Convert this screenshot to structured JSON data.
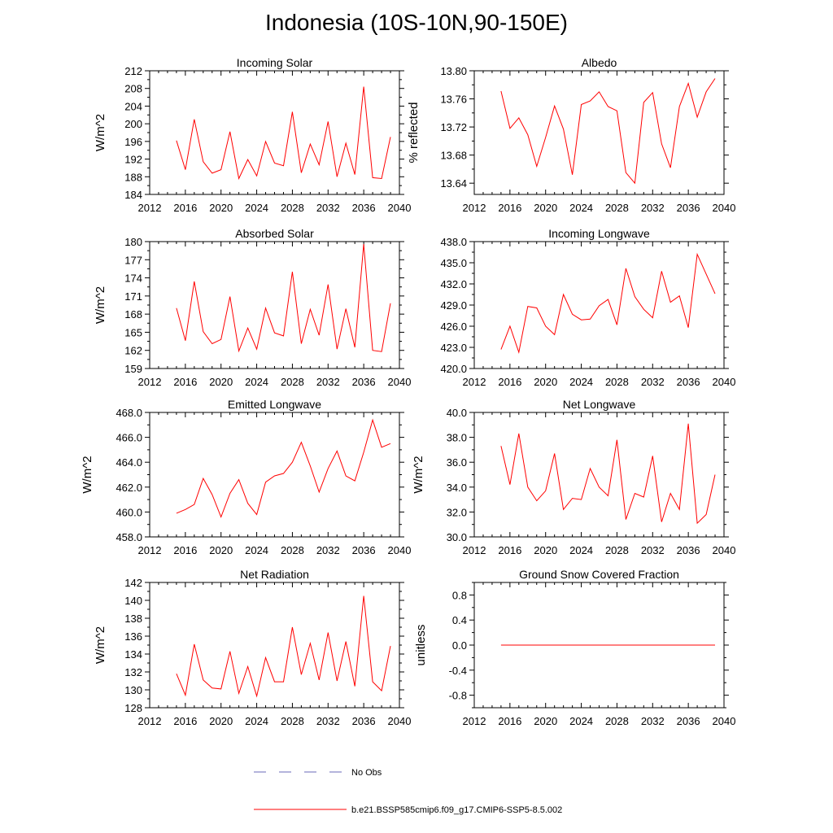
{
  "figure": {
    "title": "Indonesia (10S-10N,90-150E)"
  },
  "legend": {
    "obs_label": "No Obs",
    "obs_color": "#6a6ab8",
    "model_label": "b.e21.BSSP585cmip6.f09_g17.CMIP6-SSP5-8.5.002",
    "model_color": "#ff0000"
  },
  "chart_data": [
    {
      "type": "line",
      "title": "Incoming Solar",
      "ylabel": "W/m^2",
      "xlim": [
        2012,
        2040
      ],
      "xticks": [
        2012,
        2016,
        2020,
        2024,
        2028,
        2032,
        2036,
        2040
      ],
      "xtick_labels": [
        "2012",
        "2016",
        "2020",
        "2024",
        "2028",
        "2032",
        "2036",
        "2040"
      ],
      "ylim": [
        184,
        212
      ],
      "yticks": [
        184,
        188,
        192,
        196,
        200,
        204,
        208,
        212
      ],
      "ytick_labels": [
        "184",
        "188",
        "192",
        "196",
        "200",
        "204",
        "208",
        "212"
      ],
      "x": [
        2015,
        2016,
        2017,
        2018,
        2019,
        2020,
        2021,
        2022,
        2023,
        2024,
        2025,
        2026,
        2027,
        2028,
        2029,
        2030,
        2031,
        2032,
        2033,
        2034,
        2035,
        2036,
        2037,
        2038,
        2039
      ],
      "values": [
        196.2,
        189.6,
        201.0,
        191.4,
        188.8,
        189.6,
        198.2,
        187.6,
        191.9,
        188.2,
        196.0,
        191.1,
        190.5,
        202.7,
        188.9,
        195.4,
        190.7,
        200.5,
        188.0,
        195.6,
        188.5,
        208.4,
        187.8,
        187.6,
        197.0
      ],
      "color": "#ff0000"
    },
    {
      "type": "line",
      "title": "Albedo",
      "ylabel": "% reflected",
      "xlim": [
        2012,
        2040
      ],
      "xticks": [
        2012,
        2016,
        2020,
        2024,
        2028,
        2032,
        2036,
        2040
      ],
      "xtick_labels": [
        "2012",
        "2016",
        "2020",
        "2024",
        "2028",
        "2032",
        "2036",
        "2040"
      ],
      "ylim": [
        13.624,
        13.8
      ],
      "yticks": [
        13.64,
        13.68,
        13.72,
        13.76,
        13.8
      ],
      "ytick_labels": [
        "13.64",
        "13.68",
        "13.72",
        "13.76",
        "13.80"
      ],
      "x": [
        2015,
        2016,
        2017,
        2018,
        2019,
        2020,
        2021,
        2022,
        2023,
        2024,
        2025,
        2026,
        2027,
        2028,
        2029,
        2030,
        2031,
        2032,
        2033,
        2034,
        2035,
        2036,
        2037,
        2038,
        2039
      ],
      "values": [
        13.771,
        13.718,
        13.733,
        13.709,
        13.664,
        13.705,
        13.75,
        13.717,
        13.652,
        13.752,
        13.757,
        13.77,
        13.749,
        13.743,
        13.655,
        13.64,
        13.755,
        13.769,
        13.696,
        13.662,
        13.749,
        13.782,
        13.734,
        13.77,
        13.789
      ],
      "color": "#ff0000"
    },
    {
      "type": "line",
      "title": "Absorbed Solar",
      "ylabel": "W/m^2",
      "xlim": [
        2012,
        2040
      ],
      "xticks": [
        2012,
        2016,
        2020,
        2024,
        2028,
        2032,
        2036,
        2040
      ],
      "xtick_labels": [
        "2012",
        "2016",
        "2020",
        "2024",
        "2028",
        "2032",
        "2036",
        "2040"
      ],
      "ylim": [
        159,
        180
      ],
      "yticks": [
        159,
        162,
        165,
        168,
        171,
        174,
        177,
        180
      ],
      "ytick_labels": [
        "159",
        "162",
        "165",
        "168",
        "171",
        "174",
        "177",
        "180"
      ],
      "x": [
        2015,
        2016,
        2017,
        2018,
        2019,
        2020,
        2021,
        2022,
        2023,
        2024,
        2025,
        2026,
        2027,
        2028,
        2029,
        2030,
        2031,
        2032,
        2033,
        2034,
        2035,
        2036,
        2037,
        2038,
        2039
      ],
      "values": [
        169.0,
        163.6,
        173.4,
        165.1,
        163.1,
        163.8,
        170.9,
        161.9,
        165.7,
        162.2,
        169.0,
        164.9,
        164.4,
        175.0,
        163.1,
        168.8,
        164.5,
        172.9,
        162.2,
        168.9,
        162.5,
        179.6,
        162.0,
        161.8,
        169.8
      ],
      "color": "#ff0000"
    },
    {
      "type": "line",
      "title": "Incoming Longwave",
      "ylabel": "",
      "xlim": [
        2012,
        2040
      ],
      "xticks": [
        2012,
        2016,
        2020,
        2024,
        2028,
        2032,
        2036,
        2040
      ],
      "xtick_labels": [
        "2012",
        "2016",
        "2020",
        "2024",
        "2028",
        "2032",
        "2036",
        "2040"
      ],
      "ylim": [
        420,
        438
      ],
      "yticks": [
        420,
        423,
        426,
        429,
        432,
        435,
        438
      ],
      "ytick_labels": [
        "420.0",
        "423.0",
        "426.0",
        "429.0",
        "432.0",
        "435.0",
        "438.0"
      ],
      "x": [
        2015,
        2016,
        2017,
        2018,
        2019,
        2020,
        2021,
        2022,
        2023,
        2024,
        2025,
        2026,
        2027,
        2028,
        2029,
        2030,
        2031,
        2032,
        2033,
        2034,
        2035,
        2036,
        2037,
        2038,
        2039
      ],
      "values": [
        422.7,
        426.0,
        422.3,
        428.8,
        428.6,
        426.0,
        424.8,
        430.5,
        427.7,
        426.9,
        427.0,
        428.9,
        429.8,
        426.2,
        434.2,
        430.2,
        428.4,
        427.2,
        433.8,
        429.4,
        430.3,
        425.8,
        436.2,
        433.4,
        430.6
      ],
      "color": "#ff0000"
    },
    {
      "type": "line",
      "title": "Emitted Longwave",
      "ylabel": "W/m^2",
      "xlim": [
        2012,
        2040
      ],
      "xticks": [
        2012,
        2016,
        2020,
        2024,
        2028,
        2032,
        2036,
        2040
      ],
      "xtick_labels": [
        "2012",
        "2016",
        "2020",
        "2024",
        "2028",
        "2032",
        "2036",
        "2040"
      ],
      "ylim": [
        458,
        468
      ],
      "yticks": [
        458,
        460,
        462,
        464,
        466,
        468
      ],
      "ytick_labels": [
        "458.0",
        "460.0",
        "462.0",
        "464.0",
        "466.0",
        "468.0"
      ],
      "x": [
        2015,
        2016,
        2017,
        2018,
        2019,
        2020,
        2021,
        2022,
        2023,
        2024,
        2025,
        2026,
        2027,
        2028,
        2029,
        2030,
        2031,
        2032,
        2033,
        2034,
        2035,
        2036,
        2037,
        2038,
        2039
      ],
      "values": [
        459.9,
        460.2,
        460.6,
        462.7,
        461.4,
        459.6,
        461.5,
        462.6,
        460.7,
        459.8,
        462.4,
        462.9,
        463.1,
        464.0,
        465.6,
        463.7,
        461.6,
        463.5,
        464.9,
        462.9,
        462.5,
        464.8,
        467.4,
        465.2,
        465.5
      ],
      "color": "#ff0000"
    },
    {
      "type": "line",
      "title": "Net Longwave",
      "ylabel": "W/m^2",
      "xlim": [
        2012,
        2040
      ],
      "xticks": [
        2012,
        2016,
        2020,
        2024,
        2028,
        2032,
        2036,
        2040
      ],
      "xtick_labels": [
        "2012",
        "2016",
        "2020",
        "2024",
        "2028",
        "2032",
        "2036",
        "2040"
      ],
      "ylim": [
        30,
        40
      ],
      "yticks": [
        30,
        32,
        34,
        36,
        38,
        40
      ],
      "ytick_labels": [
        "30.0",
        "32.0",
        "34.0",
        "36.0",
        "38.0",
        "40.0"
      ],
      "x": [
        2015,
        2016,
        2017,
        2018,
        2019,
        2020,
        2021,
        2022,
        2023,
        2024,
        2025,
        2026,
        2027,
        2028,
        2029,
        2030,
        2031,
        2032,
        2033,
        2034,
        2035,
        2036,
        2037,
        2038,
        2039
      ],
      "values": [
        37.3,
        34.2,
        38.3,
        34.0,
        32.9,
        33.7,
        36.7,
        32.2,
        33.1,
        33.0,
        35.5,
        34.0,
        33.3,
        37.8,
        31.4,
        33.5,
        33.2,
        36.5,
        31.2,
        33.5,
        32.2,
        39.1,
        31.1,
        31.8,
        35.0
      ],
      "color": "#ff0000"
    },
    {
      "type": "line",
      "title": "Net Radiation",
      "ylabel": "W/m^2",
      "xlim": [
        2012,
        2040
      ],
      "xticks": [
        2012,
        2016,
        2020,
        2024,
        2028,
        2032,
        2036,
        2040
      ],
      "xtick_labels": [
        "2012",
        "2016",
        "2020",
        "2024",
        "2028",
        "2032",
        "2036",
        "2040"
      ],
      "ylim": [
        128,
        142
      ],
      "yticks": [
        128,
        130,
        132,
        134,
        136,
        138,
        140,
        142
      ],
      "ytick_labels": [
        "128",
        "130",
        "132",
        "134",
        "136",
        "138",
        "140",
        "142"
      ],
      "x": [
        2015,
        2016,
        2017,
        2018,
        2019,
        2020,
        2021,
        2022,
        2023,
        2024,
        2025,
        2026,
        2027,
        2028,
        2029,
        2030,
        2031,
        2032,
        2033,
        2034,
        2035,
        2036,
        2037,
        2038,
        2039
      ],
      "values": [
        131.8,
        129.4,
        135.1,
        131.1,
        130.2,
        130.1,
        134.3,
        129.6,
        132.6,
        129.3,
        133.6,
        130.9,
        130.9,
        137.0,
        131.7,
        135.2,
        131.1,
        136.4,
        131.0,
        135.4,
        130.4,
        140.5,
        130.9,
        129.9,
        134.9
      ],
      "color": "#ff0000"
    },
    {
      "type": "line",
      "title": "Ground Snow Covered Fraction",
      "ylabel": "unitless",
      "xlim": [
        2012,
        2040
      ],
      "xticks": [
        2012,
        2016,
        2020,
        2024,
        2028,
        2032,
        2036,
        2040
      ],
      "xtick_labels": [
        "2012",
        "2016",
        "2020",
        "2024",
        "2028",
        "2032",
        "2036",
        "2040"
      ],
      "ylim": [
        -1.0,
        1.0
      ],
      "yticks": [
        -0.8,
        -0.4,
        0.0,
        0.4,
        0.8
      ],
      "ytick_labels": [
        "-0.8",
        "-0.4",
        "0.0",
        "0.4",
        "0.8"
      ],
      "x": [
        2015,
        2016,
        2017,
        2018,
        2019,
        2020,
        2021,
        2022,
        2023,
        2024,
        2025,
        2026,
        2027,
        2028,
        2029,
        2030,
        2031,
        2032,
        2033,
        2034,
        2035,
        2036,
        2037,
        2038,
        2039
      ],
      "values": [
        0,
        0,
        0,
        0,
        0,
        0,
        0,
        0,
        0,
        0,
        0,
        0,
        0,
        0,
        0,
        0,
        0,
        0,
        0,
        0,
        0,
        0,
        0,
        0,
        0
      ],
      "color": "#ff0000"
    }
  ]
}
